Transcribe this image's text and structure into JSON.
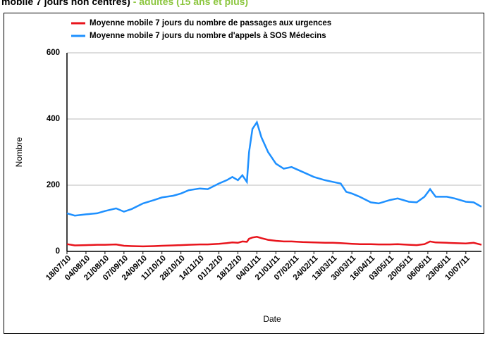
{
  "chart_data": {
    "type": "line",
    "title": "mobile 7 jours non centrés)",
    "subtitle": "- adultes (15 ans et plus)",
    "xlabel": "Date",
    "ylabel": "Nombre",
    "x": [
      "18/07/10",
      "25/07/10",
      "04/08/10",
      "14/08/10",
      "21/08/10",
      "31/08/10",
      "07/09/10",
      "14/09/10",
      "24/09/10",
      "04/10/10",
      "11/10/10",
      "21/10/10",
      "28/10/10",
      "04/11/10",
      "14/11/10",
      "21/11/10",
      "01/12/10",
      "08/12/10",
      "13/12/10",
      "18/12/10",
      "22/12/10",
      "26/12/10",
      "28/12/10",
      "31/12/10",
      "04/01/11",
      "08/01/11",
      "14/01/11",
      "21/01/11",
      "28/01/11",
      "04/02/11",
      "14/02/11",
      "24/02/11",
      "06/03/11",
      "13/03/11",
      "20/03/11",
      "25/03/11",
      "30/03/11",
      "06/04/11",
      "16/04/11",
      "23/04/11",
      "03/05/11",
      "10/05/11",
      "20/05/11",
      "27/05/11",
      "03/06/11",
      "08/06/11",
      "13/06/11",
      "23/06/11",
      "30/06/11",
      "10/07/11",
      "17/07/11",
      "24/07/11"
    ],
    "series": [
      {
        "name": "Moyenne mobile 7 jours du nombre de passages aux urgences",
        "color": "#e8141c",
        "values": [
          22,
          18,
          19,
          20,
          20,
          21,
          17,
          16,
          15,
          16,
          17,
          18,
          19,
          20,
          21,
          21,
          23,
          25,
          27,
          26,
          30,
          29,
          38,
          42,
          44,
          40,
          35,
          32,
          30,
          30,
          28,
          27,
          26,
          26,
          25,
          24,
          23,
          22,
          22,
          21,
          21,
          22,
          20,
          19,
          22,
          30,
          27,
          26,
          25,
          24,
          26,
          20
        ]
      },
      {
        "name": "Moyenne mobile 7 jours du nombre d'appels à SOS Médecins",
        "color": "#1e90ff",
        "values": [
          115,
          108,
          112,
          115,
          122,
          130,
          120,
          128,
          145,
          155,
          163,
          168,
          175,
          185,
          190,
          188,
          205,
          215,
          225,
          215,
          230,
          210,
          300,
          370,
          390,
          345,
          300,
          265,
          250,
          255,
          240,
          225,
          215,
          210,
          205,
          180,
          175,
          165,
          148,
          145,
          155,
          160,
          150,
          148,
          165,
          188,
          165,
          165,
          160,
          150,
          148,
          135
        ]
      }
    ],
    "xlim": [
      "18/07/10",
      "24/07/11"
    ],
    "xticks": [
      "18/07/10",
      "04/08/10",
      "21/08/10",
      "07/09/10",
      "24/09/10",
      "11/10/10",
      "28/10/10",
      "14/11/10",
      "01/12/10",
      "18/12/10",
      "04/01/11",
      "21/01/11",
      "07/02/11",
      "24/02/11",
      "13/03/11",
      "30/03/11",
      "16/04/11",
      "03/05/11",
      "20/05/11",
      "06/06/11",
      "23/06/11",
      "10/07/11"
    ],
    "ylim": [
      0,
      600
    ],
    "yticks": [
      0,
      200,
      400,
      600
    ],
    "grid": true
  }
}
